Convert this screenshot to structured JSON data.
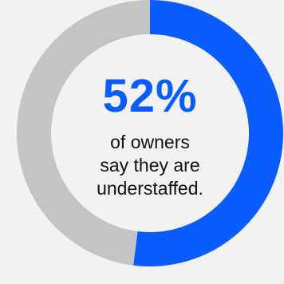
{
  "chart_data": {
    "type": "pie",
    "variant": "donut",
    "slices": [
      {
        "value": 52,
        "color": "#0a5cff"
      },
      {
        "value": 48,
        "color": "#c4c4c4"
      }
    ],
    "center_value": "52%",
    "caption_lines": [
      "of owners",
      "say they are",
      "understaffed."
    ],
    "colors": {
      "accent": "#0a5cff",
      "remainder": "#c4c4c4",
      "hole": "#f2f2f2",
      "text": "#111111"
    }
  }
}
